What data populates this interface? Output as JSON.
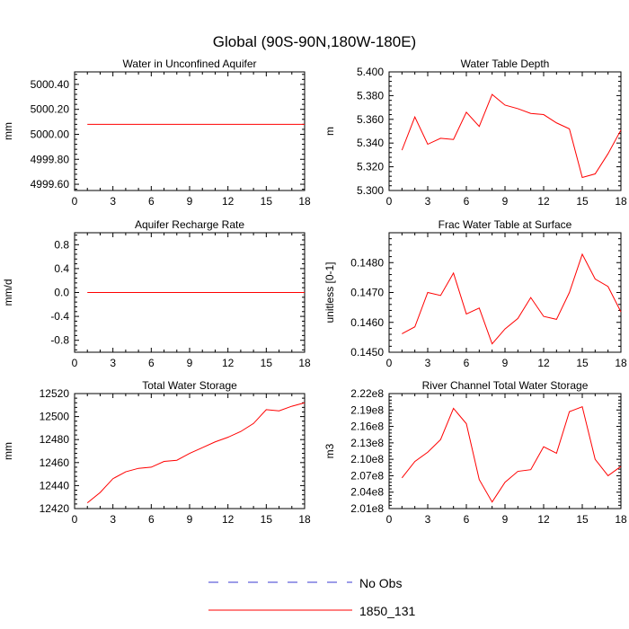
{
  "figure": {
    "title": "Global (90S-90N,180W-180E)"
  },
  "legend": {
    "entries": [
      {
        "label": "No Obs",
        "style": "dashed",
        "color": "#3a3ad0"
      },
      {
        "label": "1850_131",
        "style": "solid",
        "color": "#ff0000"
      }
    ]
  },
  "chart_data": [
    {
      "type": "line",
      "title": "Water in Unconfined Aquifer",
      "xlabel": "",
      "ylabel": "mm",
      "xlim": [
        0,
        18
      ],
      "ylim": [
        4999.55,
        5000.5
      ],
      "xticks": [
        0,
        3,
        6,
        9,
        12,
        15,
        18
      ],
      "xtick_labels": [
        "0",
        "3",
        "6",
        "9",
        "12",
        "15",
        "18"
      ],
      "yticks": [
        4999.6,
        4999.8,
        5000.0,
        5000.2,
        5000.4
      ],
      "ytick_labels": [
        "4999.60",
        "4999.80",
        "5000.00",
        "5000.20",
        "5000.40"
      ],
      "x": [
        1,
        2,
        3,
        4,
        5,
        6,
        7,
        8,
        9,
        10,
        11,
        12,
        13,
        14,
        15,
        16,
        17,
        18
      ],
      "series": [
        {
          "name": "1850_131",
          "color": "#ff0000",
          "values": [
            5000.08,
            5000.08,
            5000.08,
            5000.08,
            5000.08,
            5000.08,
            5000.08,
            5000.08,
            5000.08,
            5000.08,
            5000.08,
            5000.08,
            5000.08,
            5000.08,
            5000.08,
            5000.08,
            5000.08,
            5000.08
          ]
        }
      ]
    },
    {
      "type": "line",
      "title": "Water Table Depth",
      "xlabel": "",
      "ylabel": "m",
      "xlim": [
        0,
        18
      ],
      "ylim": [
        5.3,
        5.4
      ],
      "xticks": [
        0,
        3,
        6,
        9,
        12,
        15,
        18
      ],
      "xtick_labels": [
        "0",
        "3",
        "6",
        "9",
        "12",
        "15",
        "18"
      ],
      "yticks": [
        5.3,
        5.32,
        5.34,
        5.36,
        5.38,
        5.4
      ],
      "ytick_labels": [
        "5.300",
        "5.320",
        "5.340",
        "5.360",
        "5.380",
        "5.400"
      ],
      "x": [
        1,
        2,
        3,
        4,
        5,
        6,
        7,
        8,
        9,
        10,
        11,
        12,
        13,
        14,
        15,
        16,
        17,
        18
      ],
      "series": [
        {
          "name": "1850_131",
          "color": "#ff0000",
          "values": [
            5.334,
            5.362,
            5.339,
            5.344,
            5.343,
            5.366,
            5.354,
            5.381,
            5.372,
            5.369,
            5.365,
            5.364,
            5.357,
            5.352,
            5.311,
            5.314,
            5.331,
            5.351
          ]
        }
      ]
    },
    {
      "type": "line",
      "title": "Aquifer Recharge Rate",
      "xlabel": "",
      "ylabel": "mm/d",
      "xlim": [
        0,
        18
      ],
      "ylim": [
        -1.0,
        1.0
      ],
      "xticks": [
        0,
        3,
        6,
        9,
        12,
        15,
        18
      ],
      "xtick_labels": [
        "0",
        "3",
        "6",
        "9",
        "12",
        "15",
        "18"
      ],
      "yticks": [
        -0.8,
        -0.4,
        0.0,
        0.4,
        0.8
      ],
      "ytick_labels": [
        "-0.8",
        "-0.4",
        "0.0",
        "0.4",
        "0.8"
      ],
      "x": [
        1,
        2,
        3,
        4,
        5,
        6,
        7,
        8,
        9,
        10,
        11,
        12,
        13,
        14,
        15,
        16,
        17,
        18
      ],
      "series": [
        {
          "name": "1850_131",
          "color": "#ff0000",
          "values": [
            0,
            0,
            0,
            0,
            0,
            0,
            0,
            0,
            0,
            0,
            0,
            0,
            0,
            0,
            0,
            0,
            0,
            0
          ]
        }
      ]
    },
    {
      "type": "line",
      "title": "Frac Water Table at Surface",
      "xlabel": "",
      "ylabel": "unitless [0-1]",
      "xlim": [
        0,
        18
      ],
      "ylim": [
        0.145,
        0.149
      ],
      "xticks": [
        0,
        3,
        6,
        9,
        12,
        15,
        18
      ],
      "xtick_labels": [
        "0",
        "3",
        "6",
        "9",
        "12",
        "15",
        "18"
      ],
      "yticks": [
        0.145,
        0.146,
        0.147,
        0.148
      ],
      "ytick_labels": [
        "0.1450",
        "0.1460",
        "0.1470",
        "0.1480"
      ],
      "x": [
        1,
        2,
        3,
        4,
        5,
        6,
        7,
        8,
        9,
        10,
        11,
        12,
        13,
        14,
        15,
        16,
        17,
        18
      ],
      "series": [
        {
          "name": "1850_131",
          "color": "#ff0000",
          "values": [
            0.14562,
            0.14585,
            0.147,
            0.1469,
            0.14765,
            0.14628,
            0.14648,
            0.14528,
            0.14578,
            0.14613,
            0.14683,
            0.1462,
            0.1461,
            0.147,
            0.14828,
            0.14745,
            0.1472,
            0.14635
          ]
        }
      ]
    },
    {
      "type": "line",
      "title": "Total Water Storage",
      "xlabel": "",
      "ylabel": "mm",
      "xlim": [
        0,
        18
      ],
      "ylim": [
        12420,
        12520
      ],
      "xticks": [
        0,
        3,
        6,
        9,
        12,
        15,
        18
      ],
      "xtick_labels": [
        "0",
        "3",
        "6",
        "9",
        "12",
        "15",
        "18"
      ],
      "yticks": [
        12420,
        12440,
        12460,
        12480,
        12500,
        12520
      ],
      "ytick_labels": [
        "12420",
        "12440",
        "12460",
        "12480",
        "12500",
        "12520"
      ],
      "x": [
        1,
        2,
        3,
        4,
        5,
        6,
        7,
        8,
        9,
        10,
        11,
        12,
        13,
        14,
        15,
        16,
        17,
        18
      ],
      "series": [
        {
          "name": "1850_131",
          "color": "#ff0000",
          "values": [
            12425,
            12434,
            12446,
            12452,
            12455,
            12456,
            12461,
            12462,
            12468,
            12473,
            12478,
            12482,
            12487,
            12494,
            12506,
            12505,
            12509,
            12512
          ]
        }
      ]
    },
    {
      "type": "line",
      "title": "River Channel Total Water Storage",
      "xlabel": "",
      "ylabel": "m3",
      "xlim": [
        0,
        18
      ],
      "ylim": [
        201000000.0,
        222000000.0
      ],
      "xticks": [
        0,
        3,
        6,
        9,
        12,
        15,
        18
      ],
      "xtick_labels": [
        "0",
        "3",
        "6",
        "9",
        "12",
        "15",
        "18"
      ],
      "yticks": [
        201000000.0,
        204000000.0,
        207000000.0,
        210000000.0,
        213000000.0,
        216000000.0,
        219000000.0,
        222000000.0
      ],
      "ytick_labels": [
        "2.01e8",
        "2.04e8",
        "2.07e8",
        "2.10e8",
        "2.13e8",
        "2.16e8",
        "2.19e8",
        "2.22e8"
      ],
      "x": [
        1,
        2,
        3,
        4,
        5,
        6,
        7,
        8,
        9,
        10,
        11,
        12,
        13,
        14,
        15,
        16,
        17,
        18
      ],
      "series": [
        {
          "name": "1850_131",
          "color": "#ff0000",
          "values": [
            206600000.0,
            209600000.0,
            211300000.0,
            213600000.0,
            219300000.0,
            216500000.0,
            206300000.0,
            202200000.0,
            205800000.0,
            207800000.0,
            208100000.0,
            212300000.0,
            211100000.0,
            218700000.0,
            219600000.0,
            210000000.0,
            207000000.0,
            208700000.0
          ]
        }
      ]
    }
  ]
}
